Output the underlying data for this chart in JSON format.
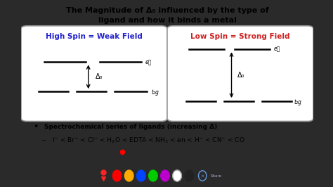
{
  "title_line1": "The Magnitude of Δ₀ influenced by the type of",
  "title_line2": "ligand and how it binds a metal",
  "bg_color": "#cccccc",
  "outer_bg": "#2a2a2a",
  "box1_label": "High Spin = Weak Field",
  "box1_label_color": "#2222cc",
  "box2_label": "Low Spin = Strong Field",
  "box2_label_color": "#cc2222",
  "eg_label": "eᵴ",
  "t2g_label": "t₂g",
  "delta_label": "Δ₀",
  "bullet_text": "Spectrochemical series of ligands (increasing Δ)",
  "series_text": "I$^{-}$ < Br$^{-}$ < Cl$^{-}$ < H$_2$O < EDTA < NH$_3$ < en < H$^{-}$ < CN$^{-}$ < CO",
  "toolbar_colors": [
    "#ff0000",
    "#ffaa00",
    "#0044ff",
    "#00cc00",
    "#bb00cc",
    "#ffffff",
    "#222222"
  ],
  "toolbar_bg": "#555555"
}
